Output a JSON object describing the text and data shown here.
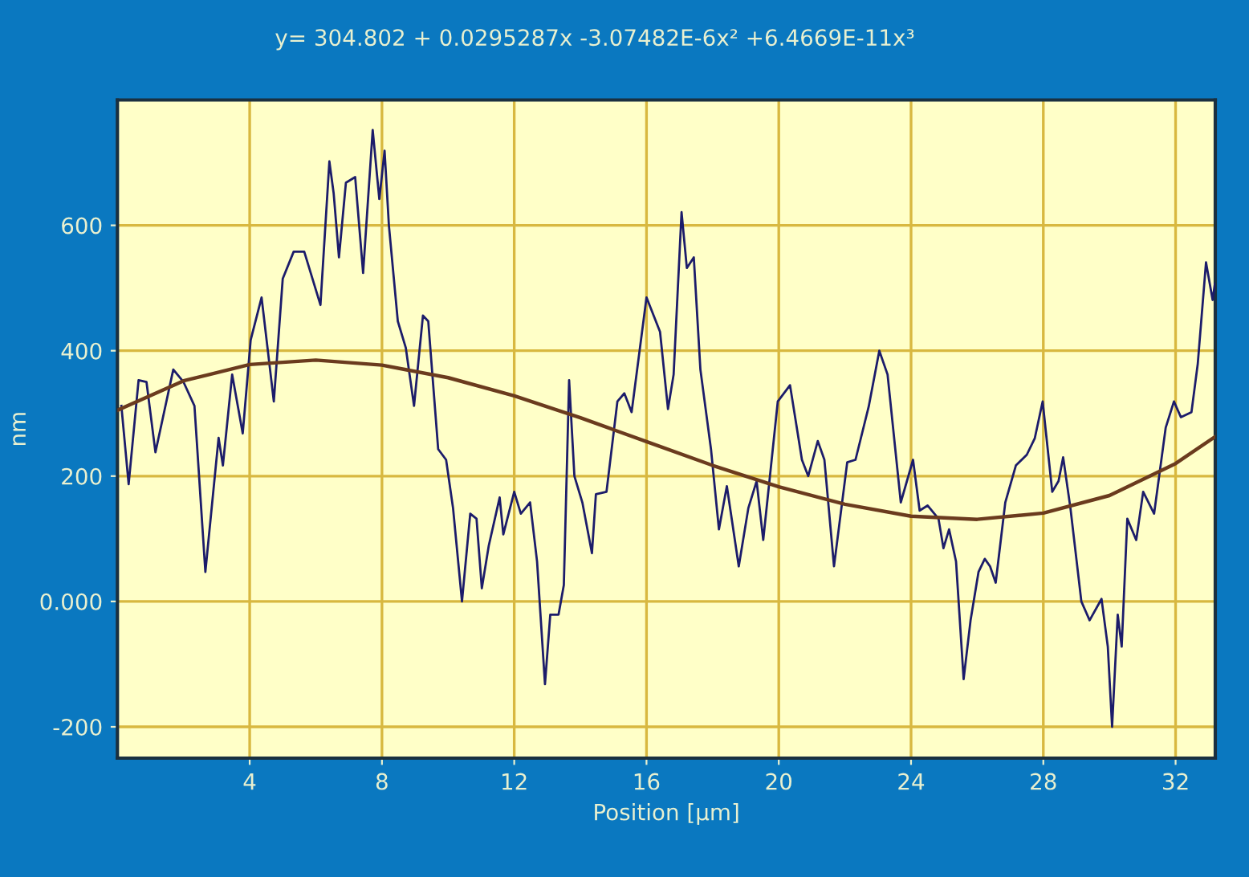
{
  "chart_data": {
    "type": "line",
    "title": "y= 304.802 + 0.0295287x -3.07482E-6x² +6.4669E-11x³",
    "xlabel": "Position [µm]",
    "ylabel": "nm",
    "xlim": [
      0,
      33.2
    ],
    "ylim": [
      -250,
      800
    ],
    "xticks": [
      4,
      8,
      12,
      16,
      20,
      24,
      28,
      32
    ],
    "yticks": [
      -200,
      {
        "value": 0,
        "label": "0.000"
      },
      200,
      400,
      600
    ],
    "grid": true,
    "series": [
      {
        "color": "#1c1c6a",
        "x": [
          0.12,
          0.34,
          0.64,
          0.88,
          1.15,
          1.69,
          2.0,
          2.33,
          2.66,
          3.06,
          3.19,
          3.47,
          3.79,
          4.03,
          4.36,
          4.73,
          5.0,
          5.33,
          5.65,
          6.14,
          6.41,
          6.54,
          6.7,
          6.91,
          7.19,
          7.43,
          7.72,
          7.92,
          8.08,
          8.21,
          8.48,
          8.72,
          8.97,
          9.24,
          9.4,
          9.7,
          9.94,
          10.15,
          10.42,
          10.67,
          10.86,
          11.02,
          11.23,
          11.56,
          11.67,
          12.0,
          12.2,
          12.48,
          12.69,
          12.93,
          13.09,
          13.34,
          13.5,
          13.66,
          13.82,
          14.06,
          14.35,
          14.47,
          14.79,
          15.12,
          15.33,
          15.55,
          16.0,
          16.41,
          16.65,
          16.82,
          17.06,
          17.22,
          17.43,
          17.63,
          17.95,
          18.19,
          18.43,
          18.79,
          19.08,
          19.33,
          19.53,
          19.97,
          20.34,
          20.7,
          20.89,
          21.18,
          21.38,
          21.67,
          22.07,
          22.32,
          22.72,
          23.04,
          23.29,
          23.69,
          24.06,
          24.26,
          24.5,
          24.83,
          24.98,
          25.15,
          25.36,
          25.59,
          25.8,
          26.04,
          26.23,
          26.39,
          26.56,
          26.85,
          27.17,
          27.5,
          27.74,
          27.98,
          28.27,
          28.46,
          28.6,
          28.82,
          29.15,
          29.4,
          29.76,
          29.95,
          30.08,
          30.25,
          30.37,
          30.54,
          30.81,
          31.02,
          31.35,
          31.7,
          31.95,
          32.16,
          32.48,
          32.67,
          32.92,
          33.12,
          33.19
        ],
        "values": [
          312,
          187,
          353,
          350,
          238,
          370,
          350,
          312,
          47,
          261,
          217,
          362,
          268,
          417,
          485,
          319,
          515,
          558,
          558,
          473,
          702,
          651,
          549,
          668,
          677,
          524,
          752,
          642,
          719,
          600,
          447,
          405,
          312,
          456,
          447,
          243,
          226,
          149,
          0,
          140,
          132,
          21,
          89,
          166,
          107,
          175,
          140,
          158,
          64,
          -132,
          -21,
          -21,
          26,
          353,
          200,
          158,
          77,
          171,
          175,
          319,
          332,
          302,
          485,
          430,
          307,
          362,
          621,
          532,
          549,
          370,
          243,
          115,
          184,
          56,
          149,
          192,
          98,
          319,
          345,
          226,
          200,
          256,
          226,
          56,
          222,
          226,
          311,
          400,
          362,
          158,
          226,
          145,
          153,
          132,
          85,
          115,
          64,
          -124,
          -30,
          47,
          68,
          56,
          30,
          158,
          217,
          234,
          260,
          319,
          175,
          192,
          230,
          149,
          0,
          -30,
          4,
          -72,
          -200,
          -21,
          -72,
          132,
          98,
          175,
          140,
          277,
          319,
          294,
          302,
          379,
          541,
          481,
          507
        ]
      },
      {
        "color": "#6b3b1e",
        "x": [
          0,
          2,
          4,
          6,
          8,
          10,
          12,
          14,
          16,
          18,
          20,
          22,
          24,
          26,
          28,
          30,
          32,
          33.2
        ],
        "values": [
          305,
          352,
          378,
          385,
          377,
          357,
          328,
          293,
          255,
          217,
          183,
          155,
          136,
          131,
          141,
          169,
          220,
          263
        ]
      }
    ]
  }
}
